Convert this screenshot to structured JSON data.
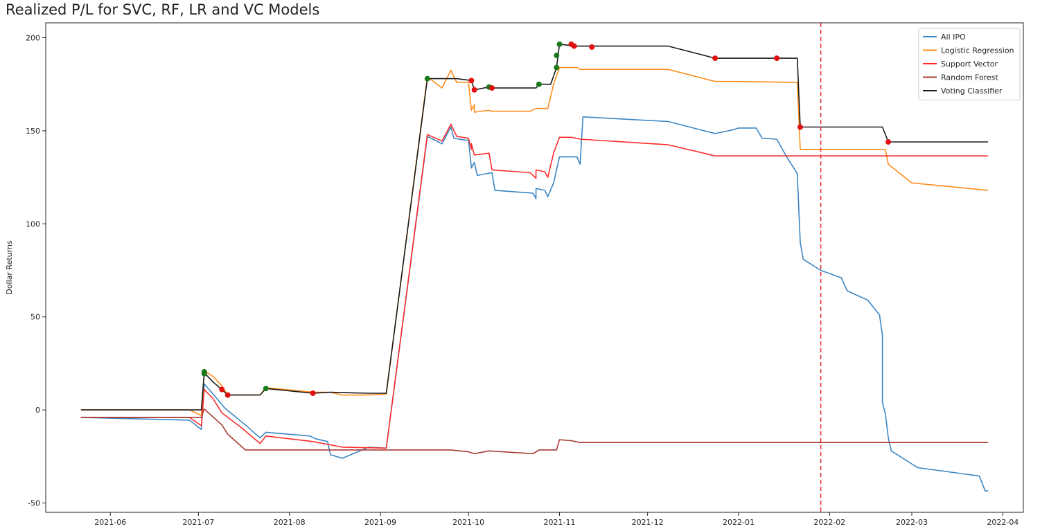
{
  "chart_data": {
    "type": "line",
    "title": "Realized P/L for SVC, RF, LR and VC Models",
    "xlabel": "",
    "ylabel": "Dollar Returns",
    "x_type": "date",
    "xlim": [
      "2021-05-10",
      "2022-04-08"
    ],
    "ylim": [
      -55,
      208
    ],
    "x_ticks": [
      "2021-06-01",
      "2021-07-01",
      "2021-08-01",
      "2021-09-01",
      "2021-10-01",
      "2021-11-01",
      "2021-12-01",
      "2022-01-01",
      "2022-02-01",
      "2022-03-01",
      "2022-04-01"
    ],
    "x_tick_labels": [
      "2021-06",
      "2021-07",
      "2021-08",
      "2021-09",
      "2021-10",
      "2021-11",
      "2021-12",
      "2022-01",
      "2022-02",
      "2022-03",
      "2022-04"
    ],
    "y_ticks": [
      -50,
      0,
      50,
      100,
      150,
      200
    ],
    "y_tick_labels": [
      "-50",
      "0",
      "50",
      "100",
      "150",
      "200"
    ],
    "grid": false,
    "legend_position": "top-right",
    "vertical_line": {
      "x": "2022-01-29",
      "color": "#e8302a",
      "style": "dashed"
    },
    "series": [
      {
        "name": "All IPO",
        "color": "#3a85c3",
        "points": [
          [
            "2021-05-22",
            -4
          ],
          [
            "2021-06-28",
            -5.5
          ],
          [
            "2021-07-02",
            -10.5
          ],
          [
            "2021-07-03",
            14
          ],
          [
            "2021-07-09",
            3
          ],
          [
            "2021-07-10",
            1
          ],
          [
            "2021-07-17",
            -8
          ],
          [
            "2021-07-22",
            -15
          ],
          [
            "2021-07-24",
            -12
          ],
          [
            "2021-08-08",
            -14
          ],
          [
            "2021-08-10",
            -15.5
          ],
          [
            "2021-08-14",
            -17
          ],
          [
            "2021-08-15",
            -24
          ],
          [
            "2021-08-19",
            -26
          ],
          [
            "2021-08-28",
            -20
          ],
          [
            "2021-09-03",
            -20.5
          ],
          [
            "2021-09-17",
            147
          ],
          [
            "2021-09-22",
            143
          ],
          [
            "2021-09-25",
            152
          ],
          [
            "2021-09-26",
            146
          ],
          [
            "2021-09-30",
            145
          ],
          [
            "2021-10-01",
            145
          ],
          [
            "2021-10-02",
            130
          ],
          [
            "2021-10-03",
            133
          ],
          [
            "2021-10-04",
            126
          ],
          [
            "2021-10-09",
            127.5
          ],
          [
            "2021-10-10",
            118
          ],
          [
            "2021-10-23",
            116.5
          ],
          [
            "2021-10-24",
            113.5
          ],
          [
            "2021-10-24",
            119
          ],
          [
            "2021-10-27",
            118
          ],
          [
            "2021-10-28",
            114.5
          ],
          [
            "2021-10-30",
            122
          ],
          [
            "2021-11-01",
            136
          ],
          [
            "2021-11-07",
            136
          ],
          [
            "2021-11-08",
            132
          ],
          [
            "2021-11-09",
            157.5
          ],
          [
            "2021-12-08",
            155
          ],
          [
            "2021-12-24",
            148.5
          ],
          [
            "2021-12-30",
            150.5
          ],
          [
            "2022-01-01",
            151.5
          ],
          [
            "2022-01-07",
            151.5
          ],
          [
            "2022-01-09",
            146
          ],
          [
            "2022-01-14",
            145.5
          ],
          [
            "2022-01-17",
            137
          ],
          [
            "2022-01-21",
            127
          ],
          [
            "2022-01-22",
            90
          ],
          [
            "2022-01-23",
            81
          ],
          [
            "2022-01-29",
            75
          ],
          [
            "2022-02-05",
            71
          ],
          [
            "2022-02-07",
            64
          ],
          [
            "2022-02-14",
            59
          ],
          [
            "2022-02-18",
            51
          ],
          [
            "2022-02-19",
            40
          ],
          [
            "2022-02-19",
            4
          ],
          [
            "2022-02-20",
            -2
          ],
          [
            "2022-02-21",
            -15
          ],
          [
            "2022-02-22",
            -22
          ],
          [
            "2022-03-03",
            -31
          ],
          [
            "2022-03-24",
            -35.5
          ],
          [
            "2022-03-26",
            -43.5
          ],
          [
            "2022-03-27",
            -43.5
          ]
        ]
      },
      {
        "name": "Logistic Regression",
        "color": "#ff8c1a",
        "points": [
          [
            "2021-05-22",
            0
          ],
          [
            "2021-06-28",
            0
          ],
          [
            "2021-07-02",
            -3
          ],
          [
            "2021-07-03",
            21
          ],
          [
            "2021-07-06",
            18
          ],
          [
            "2021-07-09",
            13
          ],
          [
            "2021-07-11",
            8
          ],
          [
            "2021-07-22",
            8
          ],
          [
            "2021-07-24",
            12
          ],
          [
            "2021-08-09",
            9.5
          ],
          [
            "2021-08-15",
            9.5
          ],
          [
            "2021-08-19",
            8
          ],
          [
            "2021-08-28",
            8
          ],
          [
            "2021-09-03",
            8.5
          ],
          [
            "2021-09-17",
            179
          ],
          [
            "2021-09-22",
            173
          ],
          [
            "2021-09-25",
            182.5
          ],
          [
            "2021-09-27",
            176
          ],
          [
            "2021-10-01",
            176
          ],
          [
            "2021-10-02",
            161
          ],
          [
            "2021-10-03",
            164
          ],
          [
            "2021-10-03",
            160
          ],
          [
            "2021-10-08",
            161
          ],
          [
            "2021-10-09",
            160.5
          ],
          [
            "2021-10-22",
            160.5
          ],
          [
            "2021-10-24",
            162
          ],
          [
            "2021-10-28",
            162
          ],
          [
            "2021-10-30",
            175
          ],
          [
            "2021-11-01",
            184
          ],
          [
            "2021-11-07",
            184
          ],
          [
            "2021-11-08",
            183
          ],
          [
            "2021-12-08",
            183
          ],
          [
            "2021-12-24",
            176.5
          ],
          [
            "2022-01-01",
            176.5
          ],
          [
            "2022-01-21",
            176
          ],
          [
            "2022-01-22",
            140
          ],
          [
            "2022-02-20",
            140
          ],
          [
            "2022-02-21",
            132
          ],
          [
            "2022-03-01",
            122
          ],
          [
            "2022-03-27",
            118
          ]
        ]
      },
      {
        "name": "Support Vector",
        "color": "#ff2a2a",
        "points": [
          [
            "2021-05-22",
            -4
          ],
          [
            "2021-06-28",
            -4
          ],
          [
            "2021-07-02",
            -8.5
          ],
          [
            "2021-07-03",
            11
          ],
          [
            "2021-07-06",
            6
          ],
          [
            "2021-07-09",
            -1.5
          ],
          [
            "2021-07-16",
            -10
          ],
          [
            "2021-07-22",
            -18
          ],
          [
            "2021-07-24",
            -14
          ],
          [
            "2021-08-09",
            -17
          ],
          [
            "2021-08-19",
            -20
          ],
          [
            "2021-09-03",
            -20.5
          ],
          [
            "2021-09-17",
            148
          ],
          [
            "2021-09-22",
            144.5
          ],
          [
            "2021-09-25",
            153.5
          ],
          [
            "2021-09-27",
            147
          ],
          [
            "2021-10-01",
            146
          ],
          [
            "2021-10-02",
            140
          ],
          [
            "2021-10-02",
            143
          ],
          [
            "2021-10-03",
            137
          ],
          [
            "2021-10-08",
            138
          ],
          [
            "2021-10-09",
            129
          ],
          [
            "2021-10-22",
            127.5
          ],
          [
            "2021-10-24",
            124.5
          ],
          [
            "2021-10-24",
            129
          ],
          [
            "2021-10-27",
            128
          ],
          [
            "2021-10-28",
            125
          ],
          [
            "2021-10-30",
            138
          ],
          [
            "2021-11-01",
            146.5
          ],
          [
            "2021-11-05",
            146.5
          ],
          [
            "2021-11-08",
            145.5
          ],
          [
            "2021-12-08",
            142.5
          ],
          [
            "2021-12-24",
            136.5
          ],
          [
            "2022-03-27",
            136.5
          ]
        ]
      },
      {
        "name": "Random Forest",
        "color": "#a83a32",
        "points": [
          [
            "2021-05-22",
            -4
          ],
          [
            "2021-06-28",
            -4
          ],
          [
            "2021-07-02",
            -4
          ],
          [
            "2021-07-03",
            0.5
          ],
          [
            "2021-07-09",
            -8
          ],
          [
            "2021-07-11",
            -13
          ],
          [
            "2021-07-17",
            -21.5
          ],
          [
            "2021-09-03",
            -21.5
          ],
          [
            "2021-09-25",
            -21.5
          ],
          [
            "2021-10-01",
            -22.5
          ],
          [
            "2021-10-03",
            -23.5
          ],
          [
            "2021-10-08",
            -22
          ],
          [
            "2021-10-23",
            -23.5
          ],
          [
            "2021-10-25",
            -21.5
          ],
          [
            "2021-10-31",
            -21.5
          ],
          [
            "2021-11-01",
            -16
          ],
          [
            "2021-11-05",
            -16.5
          ],
          [
            "2021-11-08",
            -17.5
          ],
          [
            "2021-11-12",
            -17.5
          ],
          [
            "2022-03-27",
            -17.5
          ]
        ]
      },
      {
        "name": "Voting Classifier",
        "color": "#1a1a1a",
        "points": [
          [
            "2021-05-22",
            0
          ],
          [
            "2021-07-02",
            0
          ],
          [
            "2021-07-03",
            20
          ],
          [
            "2021-07-06",
            15
          ],
          [
            "2021-07-09",
            11
          ],
          [
            "2021-07-11",
            8
          ],
          [
            "2021-07-22",
            8
          ],
          [
            "2021-07-24",
            11.5
          ],
          [
            "2021-08-09",
            9
          ],
          [
            "2021-08-15",
            9.5
          ],
          [
            "2021-08-28",
            9
          ],
          [
            "2021-09-03",
            9
          ],
          [
            "2021-09-17",
            178
          ],
          [
            "2021-09-27",
            178
          ],
          [
            "2021-10-02",
            177
          ],
          [
            "2021-10-03",
            172
          ],
          [
            "2021-10-08",
            173.5
          ],
          [
            "2021-10-09",
            173
          ],
          [
            "2021-10-24",
            173
          ],
          [
            "2021-10-25",
            175
          ],
          [
            "2021-10-29",
            175
          ],
          [
            "2021-10-31",
            184
          ],
          [
            "2021-11-01",
            196.5
          ],
          [
            "2021-11-07",
            195.5
          ],
          [
            "2021-11-12",
            195.5
          ],
          [
            "2021-12-08",
            195.5
          ],
          [
            "2021-12-24",
            189
          ],
          [
            "2022-01-14",
            189
          ],
          [
            "2022-01-21",
            189
          ],
          [
            "2022-01-22",
            152
          ],
          [
            "2022-02-19",
            152
          ],
          [
            "2022-02-21",
            144
          ],
          [
            "2022-03-27",
            144
          ]
        ]
      }
    ],
    "markers": {
      "green": {
        "color": "#1a7a1a",
        "points": [
          [
            "2021-07-03",
            20.5
          ],
          [
            "2021-07-03",
            19.5
          ],
          [
            "2021-07-24",
            11.5
          ],
          [
            "2021-09-17",
            178
          ],
          [
            "2021-10-08",
            173.5
          ],
          [
            "2021-10-25",
            175
          ],
          [
            "2021-10-31",
            184
          ],
          [
            "2021-10-31",
            190.5
          ],
          [
            "2021-11-01",
            196.5
          ]
        ]
      },
      "red": {
        "color": "#e01010",
        "points": [
          [
            "2021-07-09",
            11
          ],
          [
            "2021-07-11",
            8
          ],
          [
            "2021-08-09",
            9
          ],
          [
            "2021-10-02",
            177
          ],
          [
            "2021-10-03",
            172
          ],
          [
            "2021-10-09",
            173
          ],
          [
            "2021-11-05",
            196.5
          ],
          [
            "2021-11-06",
            195.5
          ],
          [
            "2021-11-12",
            195
          ],
          [
            "2021-12-24",
            189
          ],
          [
            "2022-01-14",
            189
          ],
          [
            "2022-01-22",
            152
          ],
          [
            "2022-02-21",
            144
          ]
        ]
      }
    }
  }
}
